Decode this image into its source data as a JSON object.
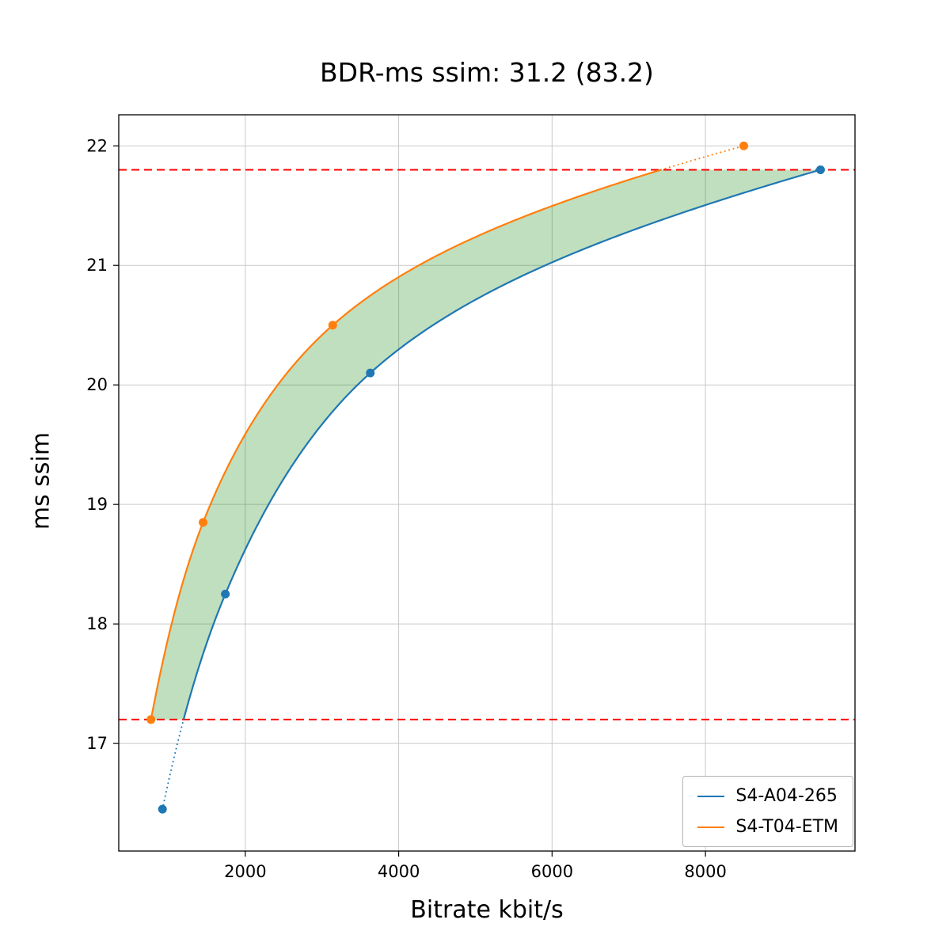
{
  "title": "BDR-ms ssim: 31.2 (83.2)",
  "chart_data": {
    "type": "line",
    "title": "BDR-ms ssim: 31.2 (83.2)",
    "xlabel": "Bitrate kbit/s",
    "ylabel": "ms ssim",
    "xlim": [
      350,
      9950
    ],
    "ylim": [
      16.1,
      22.26
    ],
    "xticks": [
      2000,
      4000,
      6000,
      8000
    ],
    "yticks": [
      17,
      18,
      19,
      20,
      21,
      22
    ],
    "grid": true,
    "legend_position": "lower right",
    "series": [
      {
        "name": "S4-A04-265",
        "color": "#1f77b4",
        "points_x_bitrate_kbits": [
          920,
          1740,
          3630,
          9500
        ],
        "points_y_msssim": [
          16.45,
          18.25,
          20.1,
          21.8
        ]
      },
      {
        "name": "S4-T04-ETM",
        "color": "#ff7f0e",
        "points_x_bitrate_kbits": [
          770,
          1450,
          3140,
          8500
        ],
        "points_y_msssim": [
          17.2,
          18.85,
          20.5,
          22.0
        ]
      }
    ],
    "overlap_quality_range": {
      "low": 17.2,
      "high": 21.8,
      "line_color": "red",
      "line_style": "dashed"
    },
    "shaded_region": {
      "fill_color": "green",
      "opacity": 0.25,
      "between_series": [
        "S4-T04-ETM",
        "S4-A04-265"
      ]
    },
    "interpolation": "pchip-log-x"
  }
}
